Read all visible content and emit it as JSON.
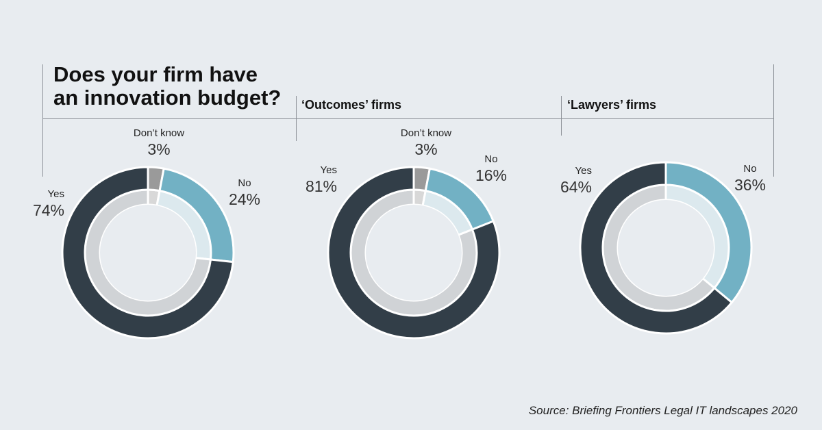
{
  "title_lines": [
    "Does your firm have",
    "an innovation budget?"
  ],
  "subtitles": {
    "outcomes": "‘Outcomes’ firms",
    "lawyers": "‘Lawyers’ firms"
  },
  "source": "Source: Briefing Frontiers Legal IT landscapes 2020",
  "colors": {
    "yes": "#323e48",
    "no": "#72b1c4",
    "dont_know": "#9a9a9a",
    "yes_inner": "#d0d3d6",
    "no_inner": "#dce9ee",
    "dk_inner": "#d8d8d8"
  },
  "chart_data": [
    {
      "type": "pie",
      "title": "Does your firm have an innovation budget?",
      "categories": [
        "Don’t know",
        "No",
        "Yes"
      ],
      "values": [
        3,
        24,
        74
      ],
      "labels": {
        "dont_know": {
          "name": "Don’t know",
          "pct": "3%"
        },
        "no": {
          "name": "No",
          "pct": "24%"
        },
        "yes": {
          "name": "Yes",
          "pct": "74%"
        }
      }
    },
    {
      "type": "pie",
      "title": "‘Outcomes’ firms",
      "categories": [
        "Don’t know",
        "No",
        "Yes"
      ],
      "values": [
        3,
        16,
        81
      ],
      "labels": {
        "dont_know": {
          "name": "Don’t know",
          "pct": "3%"
        },
        "no": {
          "name": "No",
          "pct": "16%"
        },
        "yes": {
          "name": "Yes",
          "pct": "81%"
        }
      }
    },
    {
      "type": "pie",
      "title": "‘Lawyers’ firms",
      "categories": [
        "No",
        "Yes"
      ],
      "values": [
        36,
        64
      ],
      "labels": {
        "no": {
          "name": "No",
          "pct": "36%"
        },
        "yes": {
          "name": "Yes",
          "pct": "64%"
        }
      }
    }
  ]
}
